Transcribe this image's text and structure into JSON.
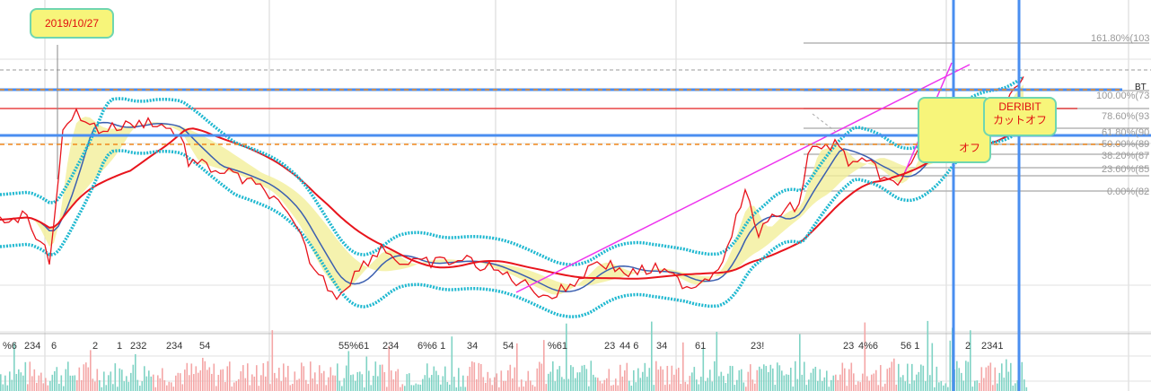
{
  "chart_data": {
    "type": "line",
    "title": "",
    "xlabel": "",
    "ylabel": "",
    "grid": true,
    "price_series": {
      "bar": [
        0,
        6,
        11,
        14,
        17,
        22,
        34,
        40,
        42,
        52,
        60,
        66,
        70,
        75,
        80,
        85,
        90,
        104,
        112,
        122,
        123,
        128,
        133,
        140,
        146,
        154,
        160,
        166,
        169,
        174,
        178,
        180,
        186,
        189,
        194,
        200,
        206,
        212,
        218,
        222,
        226
      ],
      "close": [
        7769,
        7839,
        7144,
        9090,
        9437,
        9159,
        9298,
        9090,
        8673,
        8464,
        8186,
        7630,
        7005,
        6588,
        7005,
        7352,
        7074,
        7144,
        6935,
        6588,
        6588,
        6796,
        7144,
        6935,
        7005,
        6727,
        7005,
        8186,
        7561,
        7908,
        7978,
        8812,
        8951,
        8673,
        8603,
        8256,
        9090,
        9368,
        9437,
        9368,
        9896
      ]
    },
    "fibonacci_labels": [
      "161.80%(103",
      "100.00%(73",
      "78.60%(93",
      "61.80%(90",
      "50.00%(89",
      "38.20%(87",
      "23.60%(85",
      "0.00%(82"
    ],
    "fibonacci_levels": [
      1.618,
      1.0,
      0.786,
      0.618,
      0.5,
      0.382,
      0.236,
      0.0
    ],
    "x_tick_labels": [
      "%6",
      "234",
      "6",
      "2",
      "1",
      "232",
      "234",
      "54",
      "55%61",
      "234",
      "6%6 1",
      "34",
      "54",
      "%61",
      "23",
      "44 6",
      "34",
      "61",
      "23!",
      "23",
      "4%6",
      "56 1",
      "2",
      "2341"
    ],
    "symbol_label": "BT",
    "annotations": [
      {
        "text": "2019/10/27"
      },
      {
        "line1": "DERIBIT",
        "line2": "カットオフ"
      },
      {
        "text": "オフ"
      }
    ],
    "colors": {
      "price": "#e8141c",
      "bands": "#1fb8d0",
      "ma_slow": "#e8141c",
      "ma_mid": "#3b5fb0",
      "ma_fill": "#f3ef9a",
      "trendline": "#ee33ee",
      "hline_blue": "#4a8ef0",
      "hline_orange": "#f28a1e",
      "volume_up": "#7fd3c4",
      "volume_down": "#f4a6a6"
    }
  }
}
